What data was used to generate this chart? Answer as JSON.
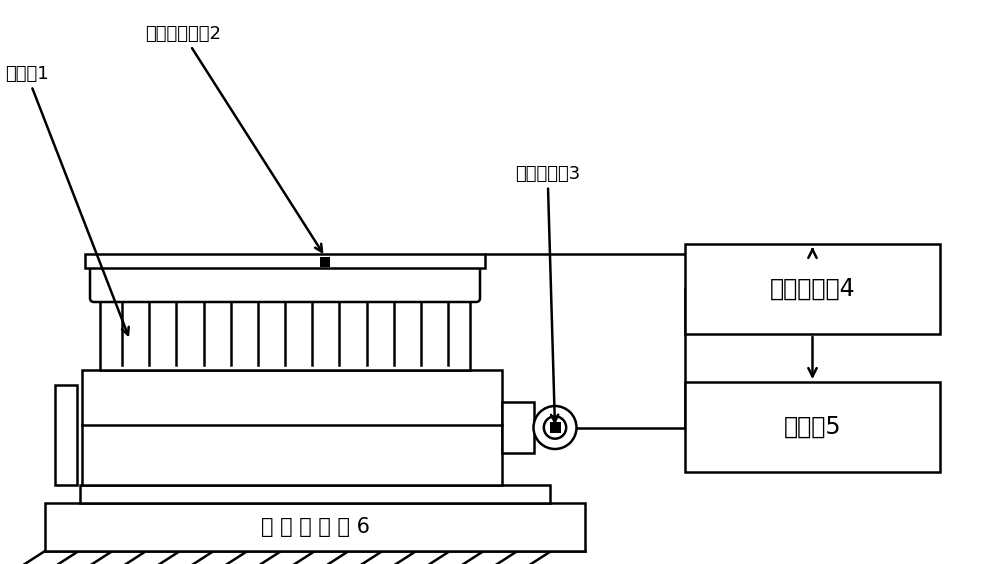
{
  "bg_color": "#ffffff",
  "line_color": "#000000",
  "label_diesel": "柴油机1",
  "label_accel": "加速度传感器2",
  "label_pulse": "脉冲传感器3",
  "label_daq": "数据采集卡4",
  "label_computer": "计算机5",
  "label_base": "试 验 台 基 座 6",
  "font_size_labels": 13,
  "font_size_box": 17,
  "font_size_base": 15
}
